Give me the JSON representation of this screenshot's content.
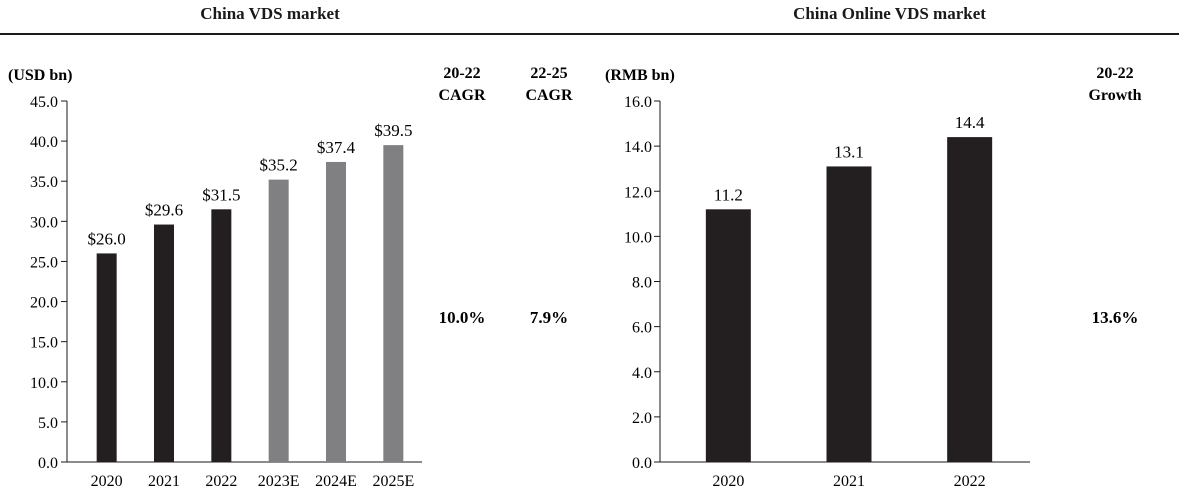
{
  "header": {
    "left_title": "China VDS market",
    "right_title": "China Online VDS market"
  },
  "chart_data": [
    {
      "type": "bar",
      "title": "China VDS market",
      "ylabel": "(USD bn)",
      "categories": [
        "2020",
        "2021",
        "2022",
        "2023E",
        "2024E",
        "2025E"
      ],
      "values": [
        26.0,
        29.6,
        31.5,
        35.2,
        37.4,
        39.5
      ],
      "value_labels": [
        "$26.0",
        "$29.6",
        "$31.5",
        "$35.2",
        "$37.4",
        "$39.5"
      ],
      "bar_colors": [
        "#231f20",
        "#231f20",
        "#231f20",
        "#808082",
        "#808082",
        "#808082"
      ],
      "ylim": [
        0,
        45
      ],
      "yticks": [
        "0.0",
        "5.0",
        "10.0",
        "15.0",
        "20.0",
        "25.0",
        "30.0",
        "35.0",
        "40.0",
        "45.0"
      ],
      "ytick_step": 5,
      "grid": false,
      "annotations": [
        {
          "header_line1": "20-22",
          "header_line2": "CAGR",
          "value": "10.0%"
        },
        {
          "header_line1": "22-25",
          "header_line2": "CAGR",
          "value": "7.9%"
        }
      ]
    },
    {
      "type": "bar",
      "title": "China Online VDS market",
      "ylabel": "(RMB bn)",
      "categories": [
        "2020",
        "2021",
        "2022"
      ],
      "values": [
        11.2,
        13.1,
        14.4
      ],
      "value_labels": [
        "11.2",
        "13.1",
        "14.4"
      ],
      "bar_colors": [
        "#231f20",
        "#231f20",
        "#231f20"
      ],
      "ylim": [
        0,
        16
      ],
      "yticks": [
        "0.0",
        "2.0",
        "4.0",
        "6.0",
        "8.0",
        "10.0",
        "12.0",
        "14.0",
        "16.0"
      ],
      "ytick_step": 2,
      "grid": false,
      "annotations": [
        {
          "header_line1": "20-22",
          "header_line2": "Growth",
          "value": "13.6%"
        }
      ]
    }
  ]
}
